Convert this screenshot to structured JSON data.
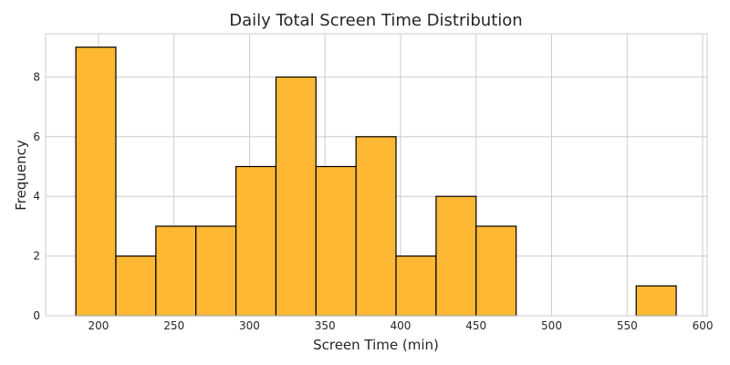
{
  "chart_data": {
    "type": "bar",
    "title": "Daily Total Screen Time Distribution",
    "xlabel": "Screen Time (min)",
    "ylabel": "Frequency",
    "bin_edges": [
      185,
      211.5,
      238,
      264.5,
      291,
      317.5,
      344,
      370.5,
      397,
      423.5,
      450,
      476.5,
      503,
      529.5,
      556,
      582.5
    ],
    "values": [
      9,
      2,
      3,
      3,
      5,
      8,
      5,
      6,
      2,
      4,
      3,
      0,
      0,
      0,
      1
    ],
    "xlim": [
      165,
      603
    ],
    "ylim": [
      0,
      9.45
    ],
    "xticks": [
      200,
      250,
      300,
      350,
      400,
      450,
      500,
      550,
      600
    ],
    "yticks": [
      0,
      2,
      4,
      6,
      8
    ],
    "grid": true,
    "colors": {
      "bar_fill": "#ffb833",
      "bar_edge": "#000000",
      "grid": "#cccccc"
    }
  }
}
